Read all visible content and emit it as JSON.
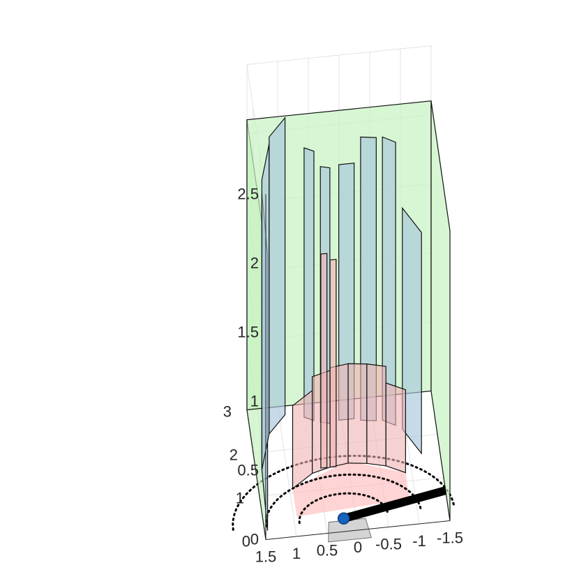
{
  "chart_data": {
    "type": "3d-surface",
    "title": "",
    "xlabel": "",
    "ylabel": "",
    "zlabel": "",
    "grid": true,
    "legend": "none",
    "x_ticks": [
      "1.5",
      "1",
      "0.5",
      "0",
      "-0.5",
      "-1",
      "-1.5"
    ],
    "y_ticks": [
      "0",
      "1",
      "2",
      "3"
    ],
    "z_ticks": [
      "0",
      "0.5",
      "1",
      "1.5",
      "2",
      "2.5"
    ],
    "xlim": [
      -1.5,
      1.5
    ],
    "ylim": [
      0,
      3
    ],
    "zlim": [
      0,
      2.5
    ],
    "colors": {
      "green_wall": "#c6f2c0",
      "blue_wall": "#a7c6dc",
      "red_wall": "#f0b3b3",
      "floor_red": "#ffb8b8",
      "trajectory": "#000000",
      "agent": "#1565c0"
    },
    "series": [
      {
        "kind": "walls",
        "color": "green",
        "panels": [
          {
            "x0": 1.5,
            "y0": 0.0,
            "x1": 1.5,
            "y1": 3.0,
            "z": 2.1
          },
          {
            "x0": 1.5,
            "y0": 3.0,
            "x1": -1.5,
            "y1": 3.0,
            "z": 2.1
          },
          {
            "x0": -1.5,
            "y0": 3.0,
            "x1": -1.5,
            "y1": 0.0,
            "z": 2.1
          }
        ]
      },
      {
        "kind": "walls",
        "color": "blue",
        "panels": [
          {
            "x0": 1.45,
            "y0": 0.2,
            "x1": 1.4,
            "y1": 1.6,
            "z": 2.0
          },
          {
            "x0": 1.4,
            "y0": 1.6,
            "x1": 1.2,
            "y1": 2.4,
            "z": 2.1
          },
          {
            "x0": 1.2,
            "y0": 2.4,
            "x1": 0.9,
            "y1": 2.8,
            "z": 2.15
          },
          {
            "x0": 0.6,
            "y0": 2.7,
            "x1": 0.45,
            "y1": 2.6,
            "z": 1.95
          },
          {
            "x0": 0.35,
            "y0": 2.55,
            "x1": 0.2,
            "y1": 2.5,
            "z": 1.85
          },
          {
            "x0": 0.05,
            "y0": 2.55,
            "x1": -0.2,
            "y1": 2.55,
            "z": 1.85
          },
          {
            "x0": -0.3,
            "y0": 2.5,
            "x1": -0.55,
            "y1": 2.45,
            "z": 2.05
          },
          {
            "x0": -0.65,
            "y0": 2.45,
            "x1": -0.85,
            "y1": 2.3,
            "z": 2.05
          },
          {
            "x0": -0.95,
            "y0": 2.2,
            "x1": -1.2,
            "y1": 1.6,
            "z": 1.6
          }
        ]
      },
      {
        "kind": "walls",
        "color": "red",
        "panels": [
          {
            "x0": 0.95,
            "y0": 1.1,
            "x1": 0.6,
            "y1": 1.4,
            "z": 0.6
          },
          {
            "x0": 0.6,
            "y0": 1.4,
            "x1": 0.3,
            "y1": 1.5,
            "z": 0.7
          },
          {
            "x0": 0.3,
            "y0": 1.5,
            "x1": 0.0,
            "y1": 1.55,
            "z": 0.72
          },
          {
            "x0": 0.0,
            "y0": 1.55,
            "x1": -0.3,
            "y1": 1.5,
            "z": 0.72
          },
          {
            "x0": -0.3,
            "y0": 1.5,
            "x1": -0.6,
            "y1": 1.4,
            "z": 0.72
          },
          {
            "x0": -0.6,
            "y0": 1.4,
            "x1": -0.9,
            "y1": 1.2,
            "z": 0.6
          },
          {
            "x0": 0.45,
            "y0": 1.5,
            "x1": 0.35,
            "y1": 1.5,
            "z": 1.55
          },
          {
            "x0": 0.3,
            "y0": 1.5,
            "x1": 0.2,
            "y1": 1.5,
            "z": 1.5
          }
        ]
      },
      {
        "kind": "dotted_arcs",
        "radii": [
          0.6,
          1.05,
          1.5
        ]
      },
      {
        "kind": "trajectory",
        "points": [
          [
            0.2,
            0.3,
            0.0
          ],
          [
            -1.5,
            0.7,
            0.0
          ]
        ]
      },
      {
        "kind": "agent",
        "position": [
          0.2,
          0.3,
          0.0
        ]
      }
    ]
  }
}
